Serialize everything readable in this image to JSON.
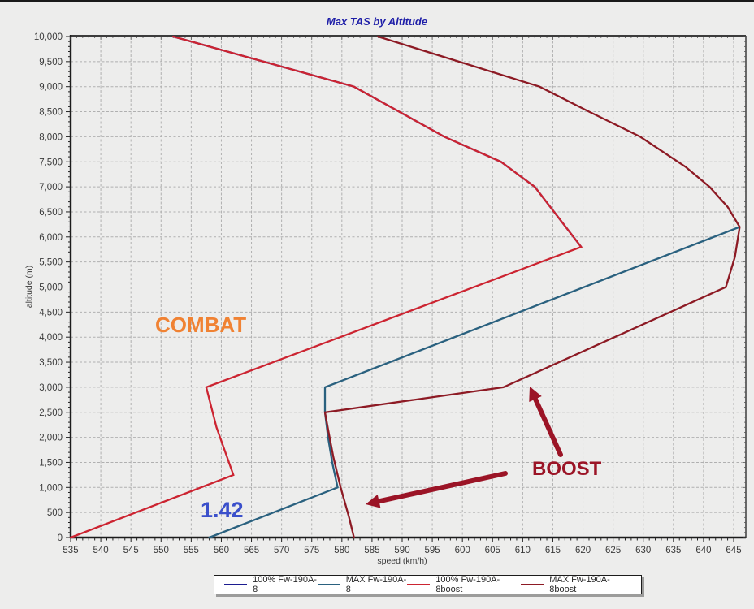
{
  "page": {
    "background": "#ededec"
  },
  "chart_data": {
    "type": "line",
    "title": "Max TAS by Altitude",
    "xlabel": "speed (km/h)",
    "ylabel": "altitude (m)",
    "xlim": [
      535,
      647
    ],
    "ylim": [
      0,
      10000
    ],
    "x_ticks": {
      "start": 535,
      "end": 645,
      "major_step": 5,
      "minor_step": 1
    },
    "y_ticks": {
      "start": 0,
      "end": 10000,
      "major_step": 500,
      "minor_step": 100
    },
    "grid": "dashed",
    "grid_color": "#b0b0b0",
    "axis_color": "#1c1c1c",
    "tick_label_color": "#3b3b3b",
    "legend_position": "bottom-center",
    "series": [
      {
        "name": "100% Fw-190A-8",
        "color": "#1c1c90",
        "note": "coincides with 100% Fw-190A-8boost curve above ~5800 m (hidden beneath it in the plot)",
        "points": [
          [
            619.7,
            5800
          ],
          [
            612,
            7000
          ],
          [
            606.4,
            7500
          ],
          [
            597,
            8000
          ],
          [
            582,
            9000
          ],
          [
            552,
            10000
          ]
        ]
      },
      {
        "name": "MAX Fw-190A-8",
        "color": "#2a617f",
        "points": [
          [
            558,
            0
          ],
          [
            579.3,
            1000
          ],
          [
            578.4,
            1500
          ],
          [
            577.7,
            2000
          ],
          [
            577.2,
            2500
          ],
          [
            577.2,
            3000
          ],
          [
            646,
            6200
          ]
        ]
      },
      {
        "name": "100% Fw-190A-8boost",
        "color": "#cc2431",
        "points": [
          [
            535,
            0
          ],
          [
            562,
            1250
          ],
          [
            559.2,
            2200
          ],
          [
            557.5,
            3000
          ],
          [
            619.7,
            5800
          ],
          [
            612,
            7000
          ],
          [
            606.4,
            7500
          ],
          [
            597,
            8000
          ],
          [
            582,
            9000
          ],
          [
            552,
            10000
          ]
        ]
      },
      {
        "name": "MAX Fw-190A-8boost",
        "color": "#8d1a24",
        "points": [
          [
            582,
            0
          ],
          [
            581.2,
            400
          ],
          [
            579.8,
            1000
          ],
          [
            578.6,
            1600
          ],
          [
            577.8,
            2100
          ],
          [
            577.2,
            2500
          ],
          [
            606.8,
            3000
          ],
          [
            643.7,
            5000
          ],
          [
            645.2,
            5600
          ],
          [
            646,
            6200
          ],
          [
            644,
            6600
          ],
          [
            641,
            7000
          ],
          [
            637,
            7400
          ],
          [
            629.5,
            8000
          ],
          [
            621,
            8500
          ],
          [
            612.8,
            9000
          ],
          [
            586,
            10000
          ]
        ]
      }
    ],
    "annotations": [
      {
        "id": "combat",
        "text": "COMBAT",
        "color": "#f08233",
        "x": 191,
        "y": 385,
        "font_size": 26,
        "italic": false
      },
      {
        "id": "boost",
        "text": "BOOST",
        "color": "#9b1426",
        "x": 655,
        "y": 564,
        "font_size": 24,
        "italic": false
      },
      {
        "id": "ata",
        "text": "1.42",
        "color": "#3b50cb",
        "x": 247,
        "y": 613,
        "font_size": 27,
        "italic": false
      }
    ],
    "arrows": [
      {
        "id": "boost-arrow-left",
        "from": [
          622,
          581
        ],
        "to": [
          450,
          619
        ],
        "color": "#9b1426",
        "width": 6
      },
      {
        "id": "boost-arrow-up",
        "from": [
          690,
          558
        ],
        "to": [
          652,
          474
        ],
        "color": "#9b1426",
        "width": 6
      }
    ]
  },
  "legend": {
    "items": [
      {
        "label": "100% Fw-190A-8",
        "color": "#1c1c90"
      },
      {
        "label": "MAX Fw-190A-8",
        "color": "#2a617f"
      },
      {
        "label": "100% Fw-190A-8boost",
        "color": "#cc2431"
      },
      {
        "label": "MAX Fw-190A-8boost",
        "color": "#8d1a24"
      }
    ]
  }
}
